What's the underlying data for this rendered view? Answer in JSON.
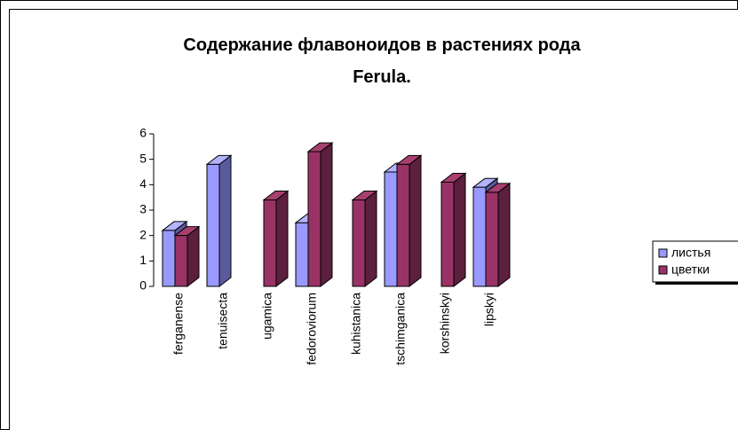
{
  "chart_data": {
    "type": "bar3d",
    "title": "Содержание флавоноидов в растениях рода Ferula.",
    "categories": [
      "ferganense",
      "tenuisecta",
      "ugamica",
      "fedoroviorum",
      "kuhistanica",
      "tschimganica",
      "korshinskyi",
      "lipskyi"
    ],
    "series": [
      {
        "name": "листья",
        "color": "#9999ff",
        "side": "#5a5a9e",
        "top": "#b3b3ff",
        "values": [
          2.2,
          4.8,
          null,
          2.5,
          null,
          4.5,
          null,
          3.9
        ]
      },
      {
        "name": "цветки",
        "color": "#993366",
        "side": "#5c1f3d",
        "top": "#a8406f",
        "values": [
          2.0,
          null,
          3.4,
          5.3,
          3.4,
          4.8,
          4.1,
          3.7
        ]
      }
    ],
    "ylim": [
      0,
      6
    ],
    "yticks": [
      0,
      1,
      2,
      3,
      4,
      5,
      6
    ],
    "legend": "right"
  }
}
